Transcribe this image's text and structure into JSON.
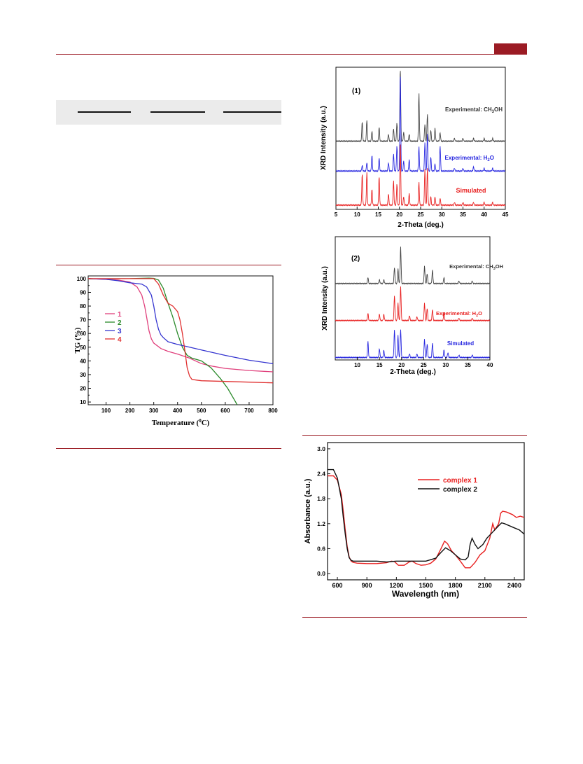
{
  "page": {
    "accent_color": "#9b1b24",
    "table_bg": "#ebebeb"
  },
  "figure_tg": {
    "chart_data": {
      "type": "line",
      "xlabel": "Temperature (",
      "xlabel_sup": "0",
      "xlabel_end": "C)",
      "ylabel": "TG (%)",
      "xlim": [
        25,
        800
      ],
      "ylim": [
        8,
        102
      ],
      "xticks": [
        100,
        200,
        300,
        400,
        500,
        600,
        700,
        800
      ],
      "yticks": [
        10,
        20,
        30,
        40,
        50,
        60,
        70,
        80,
        90,
        100
      ],
      "legend_position": "left-middle",
      "series": [
        {
          "name": "1",
          "color": "#e0407c",
          "x": [
            25,
            100,
            150,
            200,
            230,
            250,
            262,
            270,
            280,
            290,
            300,
            330,
            360,
            400,
            450,
            500,
            550,
            600,
            700,
            800
          ],
          "y": [
            100,
            99.5,
            99,
            97.5,
            94,
            88,
            80,
            72,
            62,
            56,
            53,
            49,
            47,
            45,
            42,
            38,
            36,
            34.5,
            33,
            32
          ]
        },
        {
          "name": "2",
          "color": "#2a8a2a",
          "x": [
            25,
            100,
            200,
            280,
            300,
            320,
            340,
            360,
            380,
            400,
            420,
            440,
            460,
            500,
            540,
            580,
            610,
            640,
            650
          ],
          "y": [
            99.8,
            99.9,
            100,
            100.4,
            100.2,
            99,
            93,
            82,
            72,
            60,
            50,
            44,
            42,
            40,
            35,
            27,
            20,
            11,
            8
          ]
        },
        {
          "name": "3",
          "color": "#3535d0",
          "x": [
            25,
            100,
            150,
            200,
            250,
            270,
            290,
            300,
            310,
            320,
            330,
            340,
            360,
            400,
            450,
            500,
            600,
            700,
            800
          ],
          "y": [
            100,
            99.5,
            98.5,
            97,
            96,
            94,
            88,
            80,
            70,
            63,
            59,
            57,
            54,
            52,
            50,
            48,
            44,
            40.5,
            38
          ]
        },
        {
          "name": "4",
          "color": "#e03030",
          "x": [
            25,
            100,
            150,
            200,
            250,
            300,
            320,
            340,
            360,
            380,
            400,
            410,
            420,
            430,
            440,
            450,
            460,
            480,
            500,
            600,
            700,
            800
          ],
          "y": [
            100,
            100,
            100,
            100,
            100,
            100,
            96,
            88,
            82,
            80,
            76,
            70,
            60,
            48,
            35,
            29,
            26.5,
            26,
            25.5,
            25,
            24.5,
            24
          ]
        }
      ]
    }
  },
  "figure_xrd1": {
    "chart_data": {
      "type": "line",
      "panel_label": "(1)",
      "xlabel": "2-Theta (deg.)",
      "ylabel": "XRD Intensity (a.u.)",
      "xlim": [
        5,
        45
      ],
      "xticks": [
        5,
        10,
        15,
        20,
        25,
        30,
        35,
        40,
        45
      ],
      "series": [
        {
          "name_prefix": "Experimental: CH",
          "name_sub": "3",
          "name_suffix": "OH",
          "color": "#444444",
          "baseline": 0.48,
          "peaks": [
            [
              11.2,
              0.14
            ],
            [
              12.3,
              0.15
            ],
            [
              13.5,
              0.07
            ],
            [
              15.2,
              0.1
            ],
            [
              17.4,
              0.05
            ],
            [
              18.6,
              0.09
            ],
            [
              19.4,
              0.13
            ],
            [
              20.2,
              0.52
            ],
            [
              21.0,
              0.06
            ],
            [
              22.3,
              0.05
            ],
            [
              24.6,
              0.34
            ],
            [
              26.0,
              0.12
            ],
            [
              26.6,
              0.19
            ],
            [
              27.4,
              0.08
            ],
            [
              28.4,
              0.09
            ],
            [
              29.6,
              0.06
            ],
            [
              33,
              0.02
            ],
            [
              35,
              0.02
            ],
            [
              37.5,
              0.02
            ],
            [
              40,
              0.02
            ],
            [
              42,
              0.02
            ]
          ]
        },
        {
          "name_prefix": "Experimental: H",
          "name_sub": "2",
          "name_suffix": "O",
          "color": "#2828e0",
          "baseline": 0.27,
          "peaks": [
            [
              11.2,
              0.04
            ],
            [
              12.3,
              0.06
            ],
            [
              13.5,
              0.11
            ],
            [
              15.2,
              0.09
            ],
            [
              17.4,
              0.06
            ],
            [
              18.6,
              0.12
            ],
            [
              19.4,
              0.18
            ],
            [
              20.2,
              0.7
            ],
            [
              21.0,
              0.07
            ],
            [
              22.3,
              0.08
            ],
            [
              24.6,
              0.17
            ],
            [
              26.0,
              0.2
            ],
            [
              26.6,
              0.26
            ],
            [
              27.4,
              0.1
            ],
            [
              28.4,
              0.05
            ],
            [
              29.6,
              0.18
            ],
            [
              33,
              0.02
            ],
            [
              35,
              0.02
            ],
            [
              37.5,
              0.03
            ],
            [
              40,
              0.02
            ],
            [
              42,
              0.02
            ]
          ]
        },
        {
          "name": "Simulated",
          "color": "#e82020",
          "baseline": 0.03,
          "peaks": [
            [
              11.2,
              0.22
            ],
            [
              12.3,
              0.23
            ],
            [
              13.5,
              0.11
            ],
            [
              15.2,
              0.2
            ],
            [
              17.4,
              0.08
            ],
            [
              18.6,
              0.17
            ],
            [
              19.4,
              0.15
            ],
            [
              20.2,
              0.45
            ],
            [
              21.0,
              0.06
            ],
            [
              22.3,
              0.08
            ],
            [
              24.6,
              0.16
            ],
            [
              26.0,
              0.25
            ],
            [
              26.6,
              0.26
            ],
            [
              27.4,
              0.06
            ],
            [
              28.4,
              0.06
            ],
            [
              29.6,
              0.05
            ],
            [
              33,
              0.02
            ],
            [
              35,
              0.02
            ],
            [
              37.5,
              0.02
            ],
            [
              40,
              0.02
            ],
            [
              42,
              0.02
            ]
          ]
        }
      ]
    }
  },
  "figure_xrd2": {
    "chart_data": {
      "type": "line",
      "panel_label": "(2)",
      "xlabel": "2-Theta (deg.)",
      "ylabel": "XRD Intensity (a.u.)",
      "xlim": [
        5,
        40
      ],
      "xticks": [
        10,
        15,
        20,
        25,
        30,
        35,
        40
      ],
      "series": [
        {
          "name_prefix": "Experimental: CH",
          "name_sub": "3",
          "name_suffix": "OH",
          "color": "#444444",
          "baseline": 0.62,
          "peaks": [
            [
              12.4,
              0.05
            ],
            [
              15.0,
              0.03
            ],
            [
              16.0,
              0.03
            ],
            [
              18.4,
              0.13
            ],
            [
              19.2,
              0.12
            ],
            [
              19.8,
              0.3
            ],
            [
              25.2,
              0.14
            ],
            [
              25.8,
              0.08
            ],
            [
              27.0,
              0.11
            ],
            [
              29.6,
              0.05
            ],
            [
              33,
              0.02
            ],
            [
              36,
              0.02
            ]
          ]
        },
        {
          "name_prefix": "Experimental: H",
          "name_sub": "2",
          "name_suffix": "O",
          "color": "#e82020",
          "baseline": 0.32,
          "peaks": [
            [
              12.4,
              0.06
            ],
            [
              15.0,
              0.05
            ],
            [
              16.0,
              0.05
            ],
            [
              18.4,
              0.2
            ],
            [
              19.2,
              0.14
            ],
            [
              19.8,
              0.28
            ],
            [
              21.8,
              0.04
            ],
            [
              23.5,
              0.03
            ],
            [
              25.2,
              0.14
            ],
            [
              25.8,
              0.1
            ],
            [
              27.0,
              0.09
            ],
            [
              29.6,
              0.06
            ],
            [
              33,
              0.02
            ],
            [
              36,
              0.02
            ]
          ]
        },
        {
          "name": "Simulated",
          "color": "#2828e0",
          "baseline": 0.02,
          "peaks": [
            [
              12.4,
              0.13
            ],
            [
              15.0,
              0.07
            ],
            [
              16.0,
              0.06
            ],
            [
              18.4,
              0.22
            ],
            [
              19.2,
              0.18
            ],
            [
              19.8,
              0.23
            ],
            [
              21.8,
              0.03
            ],
            [
              23.5,
              0.03
            ],
            [
              25.2,
              0.15
            ],
            [
              25.8,
              0.11
            ],
            [
              27.0,
              0.12
            ],
            [
              29.6,
              0.06
            ],
            [
              30.5,
              0.04
            ],
            [
              33,
              0.02
            ],
            [
              36,
              0.02
            ]
          ]
        }
      ]
    }
  },
  "figure_abs": {
    "chart_data": {
      "type": "line",
      "xlabel": "Wavelength (nm)",
      "ylabel": "Absorbance (a.u.)",
      "xlim": [
        500,
        2500
      ],
      "ylim": [
        -0.15,
        3.15
      ],
      "xticks": [
        600,
        900,
        1200,
        1500,
        1800,
        2100,
        2400
      ],
      "yticks": [
        0.0,
        0.6,
        1.2,
        1.8,
        2.4,
        3.0
      ],
      "legend_position": "top-right",
      "series": [
        {
          "name": "complex 1",
          "color": "#e82020",
          "x": [
            500,
            560,
            600,
            640,
            660,
            680,
            700,
            720,
            740,
            760,
            800,
            900,
            1000,
            1100,
            1150,
            1180,
            1220,
            1280,
            1330,
            1360,
            1400,
            1450,
            1500,
            1550,
            1600,
            1650,
            1690,
            1720,
            1760,
            1800,
            1850,
            1900,
            1950,
            2000,
            2050,
            2100,
            2150,
            2180,
            2200,
            2240,
            2260,
            2280,
            2320,
            2380,
            2420,
            2460,
            2500
          ],
          "y": [
            2.35,
            2.35,
            2.25,
            1.9,
            1.5,
            1.05,
            0.65,
            0.4,
            0.3,
            0.27,
            0.25,
            0.24,
            0.24,
            0.26,
            0.3,
            0.29,
            0.2,
            0.2,
            0.28,
            0.3,
            0.24,
            0.2,
            0.21,
            0.25,
            0.35,
            0.58,
            0.78,
            0.72,
            0.55,
            0.45,
            0.3,
            0.14,
            0.14,
            0.27,
            0.45,
            0.55,
            0.85,
            1.2,
            1.05,
            1.2,
            1.45,
            1.5,
            1.48,
            1.42,
            1.35,
            1.38,
            1.35
          ]
        },
        {
          "name": "complex 2",
          "color": "#111111",
          "x": [
            500,
            560,
            600,
            640,
            660,
            680,
            700,
            720,
            740,
            760,
            800,
            900,
            1000,
            1100,
            1200,
            1300,
            1400,
            1500,
            1600,
            1650,
            1700,
            1750,
            1800,
            1850,
            1900,
            1930,
            1950,
            1970,
            2000,
            2030,
            2080,
            2120,
            2160,
            2200,
            2240,
            2270,
            2300,
            2350,
            2400,
            2450,
            2500
          ],
          "y": [
            2.5,
            2.5,
            2.3,
            1.8,
            1.35,
            0.95,
            0.6,
            0.38,
            0.32,
            0.3,
            0.3,
            0.3,
            0.3,
            0.28,
            0.3,
            0.3,
            0.3,
            0.3,
            0.37,
            0.5,
            0.62,
            0.55,
            0.45,
            0.35,
            0.33,
            0.4,
            0.7,
            0.85,
            0.7,
            0.6,
            0.7,
            0.85,
            0.95,
            1.05,
            1.15,
            1.22,
            1.2,
            1.15,
            1.1,
            1.05,
            0.95
          ]
        }
      ]
    }
  }
}
